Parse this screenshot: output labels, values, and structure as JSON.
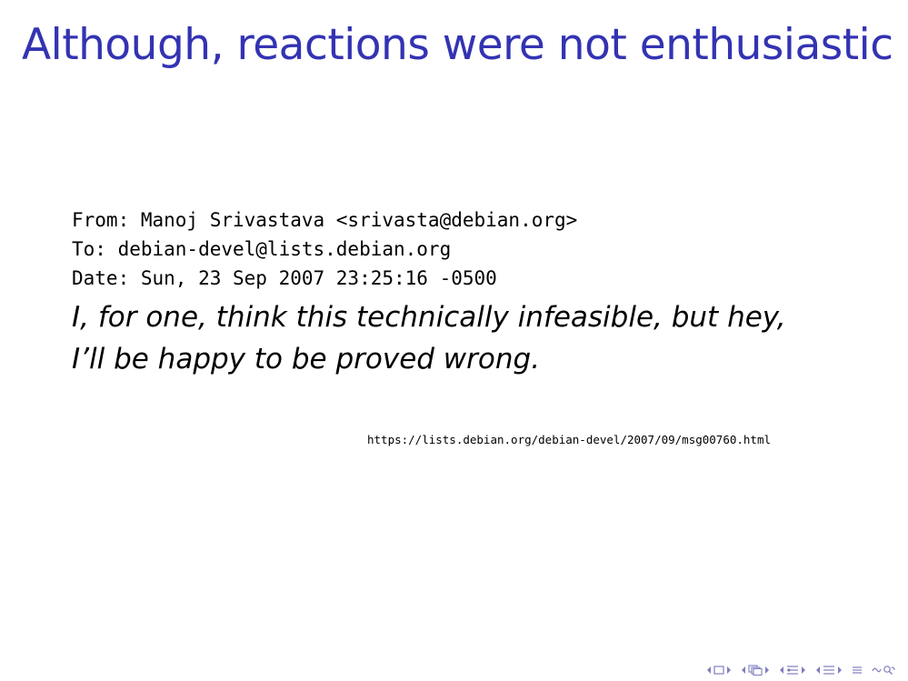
{
  "slide": {
    "title": "Although, reactions were not enthusiastic",
    "email": {
      "from": "From: Manoj Srivastava <srivasta@debian.org>",
      "to": "To: debian-devel@lists.debian.org",
      "date": "Date: Sun, 23 Sep 2007 23:25:16 -0500"
    },
    "quote": {
      "line1": "I, for one, think this technically infeasible, but hey,",
      "line2": "I’ll be happy to be proved wrong."
    },
    "source_url": "https://lists.debian.org/debian-devel/2007/09/msg00760.html"
  },
  "navigation": {
    "color": "#7f7fbf",
    "icons": [
      "arrow-left-icon",
      "slide-icon",
      "arrow-right-icon",
      "arrow-left-icon",
      "frame-icon",
      "arrow-right-icon",
      "arrow-left-icon",
      "subsection-icon",
      "arrow-right-icon",
      "arrow-left-icon",
      "section-icon",
      "arrow-right-icon",
      "align-icon",
      "search-icon"
    ]
  },
  "theme": {
    "title_color": "#3333b3",
    "text_color": "#000000",
    "background": "#ffffff"
  }
}
